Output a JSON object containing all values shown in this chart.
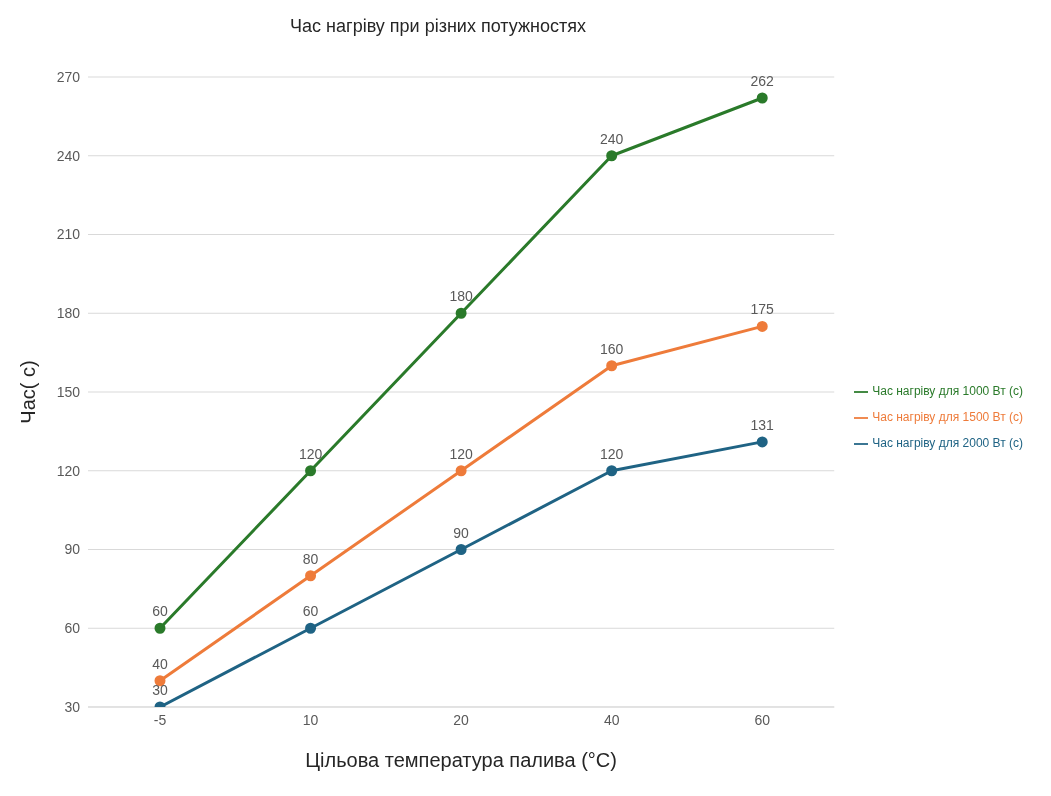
{
  "chart_data": {
    "type": "line",
    "title": "Час нагріву при різних потужностях",
    "xlabel": "Цільова температура палива (°C)",
    "ylabel": "Час( с)",
    "categories": [
      "-5",
      "10",
      "20",
      "40",
      "60"
    ],
    "series": [
      {
        "name": "Час нагріву для 2000 Вт (с)",
        "color": "#1f6384",
        "values": [
          30,
          60,
          90,
          120,
          131
        ]
      },
      {
        "name": "Час нагріву для 1500 Вт (с)",
        "color": "#ee7b3a",
        "values": [
          40,
          80,
          120,
          160,
          175
        ]
      },
      {
        "name": "Час нагріву для 1000 Вт (с)",
        "color": "#2a7a2a",
        "values": [
          60,
          120,
          180,
          240,
          262
        ]
      }
    ],
    "ylim": [
      30,
      270
    ],
    "yticks": [
      30,
      60,
      90,
      120,
      150,
      180,
      210,
      240,
      270
    ],
    "grid": "y",
    "legend": "right",
    "marker": "circle",
    "line_style": "solid",
    "data_labels": true
  }
}
